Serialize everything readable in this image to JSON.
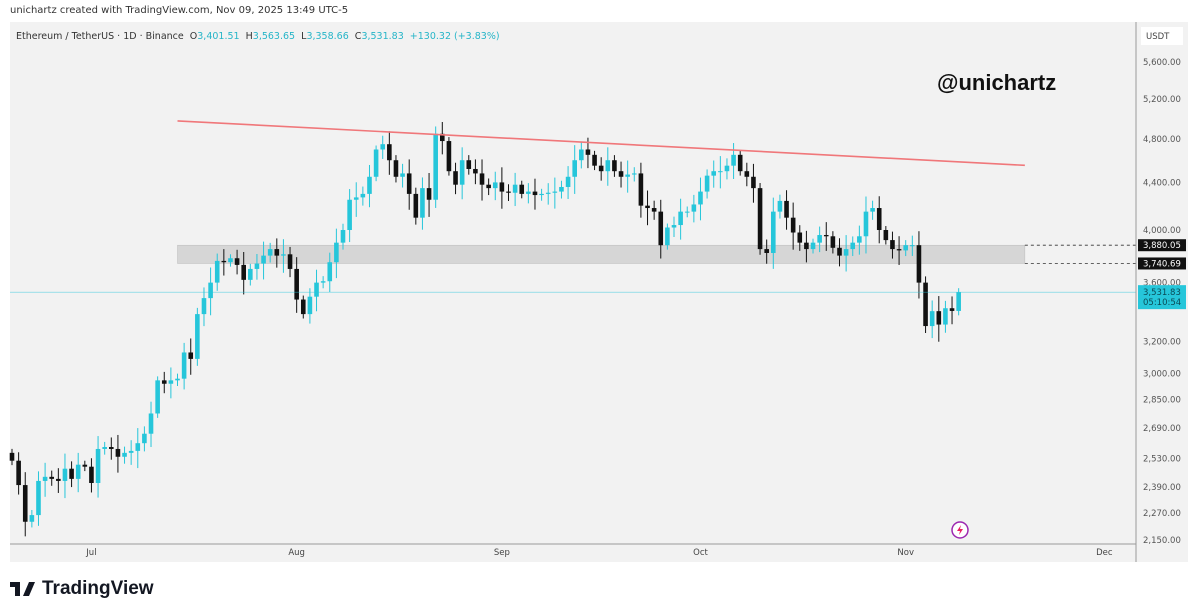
{
  "caption": "unichartz created with TradingView.com, Nov 09, 2025 13:49 UTC-5",
  "legend": {
    "symbol": "Ethereum / TetherUS · 1D · Binance",
    "o_label": "O",
    "o": "3,401.51",
    "h_label": "H",
    "h": "3,563.65",
    "l_label": "L",
    "l": "3,358.66",
    "c_label": "C",
    "c": "3,531.83",
    "change": "+130.32 (+3.83%)"
  },
  "watermark": "@unichartz",
  "footer": {
    "brand": "TradingView",
    "logo_icon": "tradingview-logo-icon"
  },
  "colors": {
    "up": "#26c6da",
    "down": "#111111",
    "trendline": "#f0777a",
    "zone": "#d6d6d6",
    "price_line": "#26c6da"
  },
  "chart_data": {
    "type": "candlestick",
    "scale": "log",
    "currency": "USDT",
    "start_date": "2025-06-19",
    "closes": [
      2520,
      2400,
      2230,
      2260,
      2420,
      2440,
      2430,
      2420,
      2480,
      2430,
      2500,
      2490,
      2410,
      2580,
      2590,
      2580,
      2540,
      2560,
      2570,
      2610,
      2660,
      2770,
      2960,
      2940,
      2960,
      2970,
      3130,
      3090,
      3380,
      3490,
      3600,
      3760,
      3750,
      3780,
      3730,
      3620,
      3700,
      3740,
      3800,
      3850,
      3800,
      3810,
      3700,
      3480,
      3380,
      3500,
      3600,
      3610,
      3750,
      3900,
      4000,
      4250,
      4270,
      4300,
      4450,
      4700,
      4750,
      4600,
      4450,
      4480,
      4300,
      4100,
      4350,
      4250,
      4850,
      4780,
      4500,
      4380,
      4600,
      4520,
      4480,
      4380,
      4350,
      4400,
      4320,
      4310,
      4380,
      4300,
      4320,
      4290,
      4300,
      4310,
      4320,
      4360,
      4450,
      4600,
      4700,
      4650,
      4550,
      4500,
      4600,
      4500,
      4450,
      4470,
      4480,
      4200,
      4180,
      4150,
      3880,
      4020,
      4040,
      4150,
      4150,
      4210,
      4320,
      4460,
      4500,
      4500,
      4550,
      4650,
      4500,
      4450,
      4350,
      3850,
      3820,
      4150,
      4240,
      4100,
      3980,
      3900,
      3850,
      3900,
      3960,
      3950,
      3860,
      3800,
      3850,
      3900,
      3950,
      4150,
      4180,
      4000,
      3920,
      3850,
      3840,
      3880,
      3880,
      3600,
      3300,
      3400,
      3310,
      3420,
      3401.51,
      3531.83
    ],
    "y_ticks": [
      "5,600.00",
      "5,200.00",
      "4,800.00",
      "4,400.00",
      "4,000.00",
      "3,600.00",
      "3,200.00",
      "3,000.00",
      "2,850.00",
      "2,690.00",
      "2,530.00",
      "2,390.00",
      "2,270.00",
      "2,150.00"
    ],
    "y_tick_values": [
      5600,
      5200,
      4800,
      4400,
      4000,
      3600,
      3200,
      3000,
      2850,
      2690,
      2530,
      2390,
      2270,
      2150
    ],
    "x_ticks": [
      {
        "label": "Jul",
        "day": 12
      },
      {
        "label": "Aug",
        "day": 43
      },
      {
        "label": "Sep",
        "day": 74
      },
      {
        "label": "Oct",
        "day": 104
      },
      {
        "label": "Nov",
        "day": 135
      },
      {
        "label": "Dec",
        "day": 165
      }
    ],
    "ylim": [
      2150,
      5600
    ],
    "trendline": {
      "from_day": 25,
      "from_price": 4977,
      "to_day": 153,
      "to_price": 4553
    },
    "zone": {
      "from_day": 25,
      "to_day": 153,
      "low": 3740.69,
      "high": 3880.05
    },
    "levels": [
      {
        "price": 3880.05,
        "label": "3,880.05"
      },
      {
        "price": 3740.69,
        "label": "3,740.69"
      }
    ],
    "last_price": {
      "price": 3531.83,
      "label": "3,531.83",
      "countdown": "05:10:54"
    }
  }
}
